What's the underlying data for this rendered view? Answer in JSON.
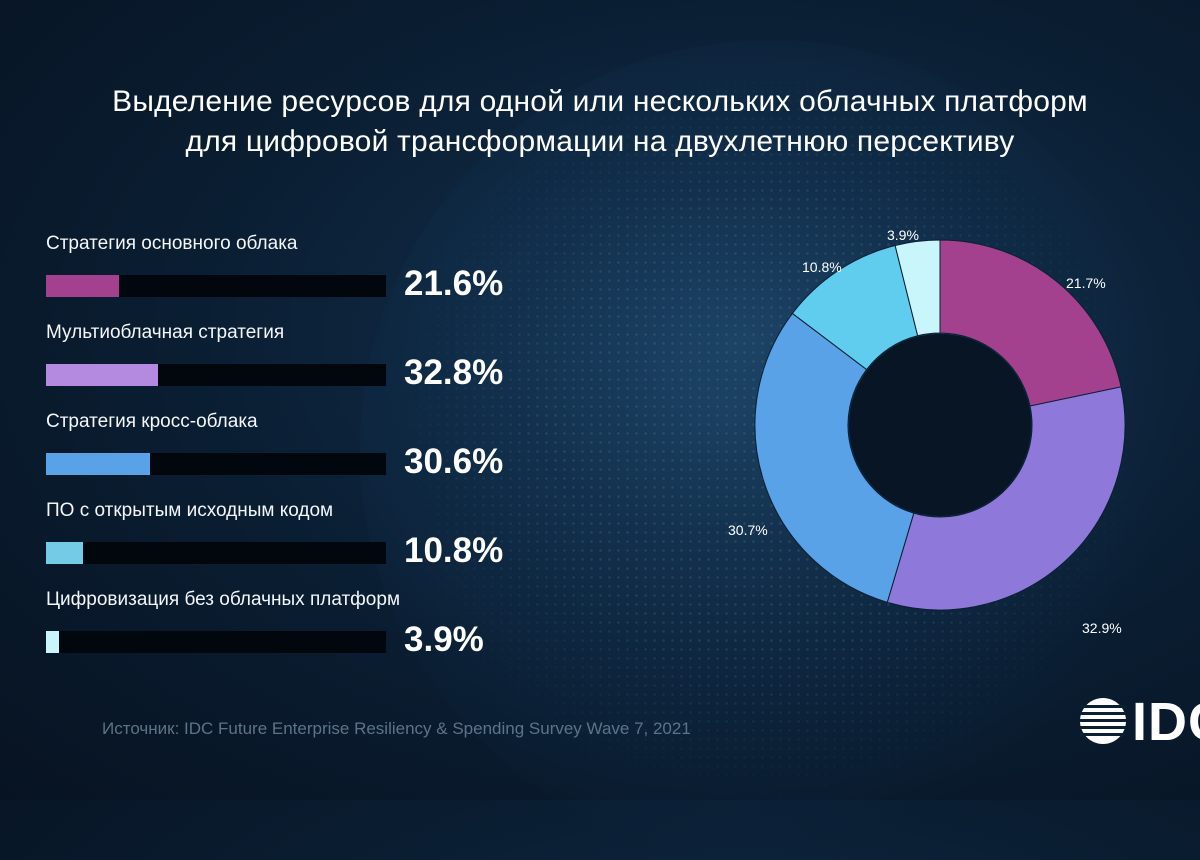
{
  "colors": {
    "magenta": "#a4418f",
    "lavender": "#b48ae0",
    "blue": "#5aa2e8",
    "teal": "#74cbe6",
    "cyan": "#c8f6fb",
    "background": "#0b1f33"
  },
  "title": {
    "line1": "Выделение ресурсов для одной или нескольких облачных платформ",
    "line2": "для цифровой трансформации на двухлетнюю персективу"
  },
  "chart_data": [
    {
      "type": "bar",
      "orientation": "horizontal",
      "categories": [
        "Стратегия основного облака",
        "Мультиоблачная стратегия",
        "Стратегия кросс-облака",
        "ПО с открытым исходным кодом",
        "Цифровизация без облачных платформ"
      ],
      "values": [
        21.6,
        32.8,
        30.6,
        10.8,
        3.9
      ],
      "value_labels": [
        "21.6%",
        "32.8%",
        "30.6%",
        "10.8%",
        "3.9%"
      ],
      "colors": [
        "#a4418f",
        "#b48ae0",
        "#5aa2e8",
        "#74cbe6",
        "#c8f6fb"
      ],
      "xlim": [
        0,
        100
      ],
      "unit": "%"
    },
    {
      "type": "pie",
      "variant": "donut",
      "categories": [
        "Стратегия основного облака",
        "Мультиоблачная стратегия",
        "Стратегия кросс-облака",
        "ПО с открытым исходным кодом",
        "Цифровизация без облачных платформ"
      ],
      "values": [
        21.7,
        32.9,
        30.7,
        10.8,
        3.9
      ],
      "value_labels": [
        "21.7%",
        "32.9%",
        "30.7%",
        "10.8%",
        "3.9%"
      ],
      "colors": [
        "#a4418f",
        "#8e79db",
        "#5aa2e8",
        "#60cdee",
        "#c8f6fb"
      ],
      "start": "top",
      "direction": "clockwise"
    }
  ],
  "source": "Источник: IDC Future Enterprise Resiliency & Spending Survey Wave 7, 2021",
  "logo": {
    "text": "IDC",
    "icon": "idc-logo-icon"
  }
}
